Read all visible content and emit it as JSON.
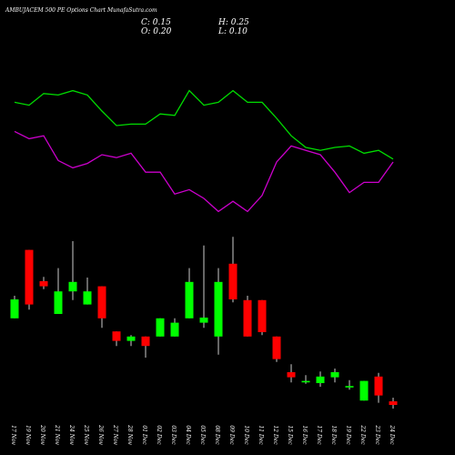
{
  "chart_data": {
    "type": "candlestick",
    "title": "AMBUJACEM 500 PE Options Chart MunafaSutra.com",
    "header": {
      "close": "C: 0.15",
      "open": "O: 0.20",
      "high": "H: 0.25",
      "low": "L: 0.10"
    },
    "categories": [
      "17 Nov",
      "19 Nov",
      "20 Nov",
      "21 Nov",
      "24 Nov",
      "25 Nov",
      "26 Nov",
      "27 Nov",
      "28 Nov",
      "01 Dec",
      "02 Dec",
      "03 Dec",
      "04 Dec",
      "05 Dec",
      "08 Dec",
      "09 Dec",
      "10 Dec",
      "11 Dec",
      "12 Dec",
      "15 Dec",
      "16 Dec",
      "17 Dec",
      "18 Dec",
      "19 Dec",
      "22 Dec",
      "23 Dec",
      "24 Dec"
    ],
    "open": [
      1.34,
      2.28,
      1.85,
      1.4,
      1.71,
      1.53,
      1.78,
      1.16,
      1.03,
      1.09,
      1.09,
      1.09,
      1.34,
      1.28,
      1.09,
      2.09,
      1.59,
      1.59,
      1.09,
      0.6,
      0.46,
      0.45,
      0.53,
      0.39,
      0.21,
      0.54,
      0.2
    ],
    "high": [
      1.65,
      2.28,
      1.91,
      2.03,
      2.4,
      1.9,
      1.78,
      1.16,
      1.11,
      1.09,
      1.34,
      1.34,
      2.03,
      2.34,
      2.03,
      2.46,
      1.65,
      1.59,
      1.09,
      0.71,
      0.56,
      0.61,
      0.65,
      0.49,
      0.48,
      0.59,
      0.25
    ],
    "low": [
      1.34,
      1.46,
      1.74,
      1.4,
      1.59,
      1.53,
      1.21,
      0.96,
      0.96,
      0.8,
      1.09,
      1.09,
      1.34,
      1.21,
      0.84,
      1.56,
      1.09,
      1.11,
      0.74,
      0.46,
      0.44,
      0.4,
      0.46,
      0.36,
      0.21,
      0.18,
      0.1
    ],
    "close": [
      1.6,
      1.53,
      1.78,
      1.71,
      1.84,
      1.71,
      1.34,
      1.03,
      1.09,
      0.96,
      1.34,
      1.28,
      1.84,
      1.35,
      1.84,
      1.6,
      1.09,
      1.15,
      0.78,
      0.53,
      0.48,
      0.54,
      0.6,
      0.41,
      0.48,
      0.28,
      0.15
    ],
    "up_color": "#00ff00",
    "down_color": "#ff0000",
    "ylim": [
      0,
      2.5
    ],
    "lines": [
      {
        "color": "#00dd00",
        "values": [
          86,
          84,
          92,
          91,
          94,
          91,
          80,
          70,
          71,
          71,
          78,
          77,
          94,
          84,
          86,
          94,
          86,
          86,
          75,
          63,
          55,
          53,
          55,
          56,
          51,
          53,
          47
        ]
      },
      {
        "color": "#cc00cc",
        "values": [
          66,
          61,
          63,
          46,
          41,
          44,
          50,
          48,
          51,
          38,
          38,
          23,
          26,
          20,
          11,
          18,
          11,
          22,
          45,
          56,
          53,
          50,
          38,
          24,
          31,
          31,
          45
        ]
      }
    ],
    "y2lim": [
      0,
      100
    ]
  }
}
